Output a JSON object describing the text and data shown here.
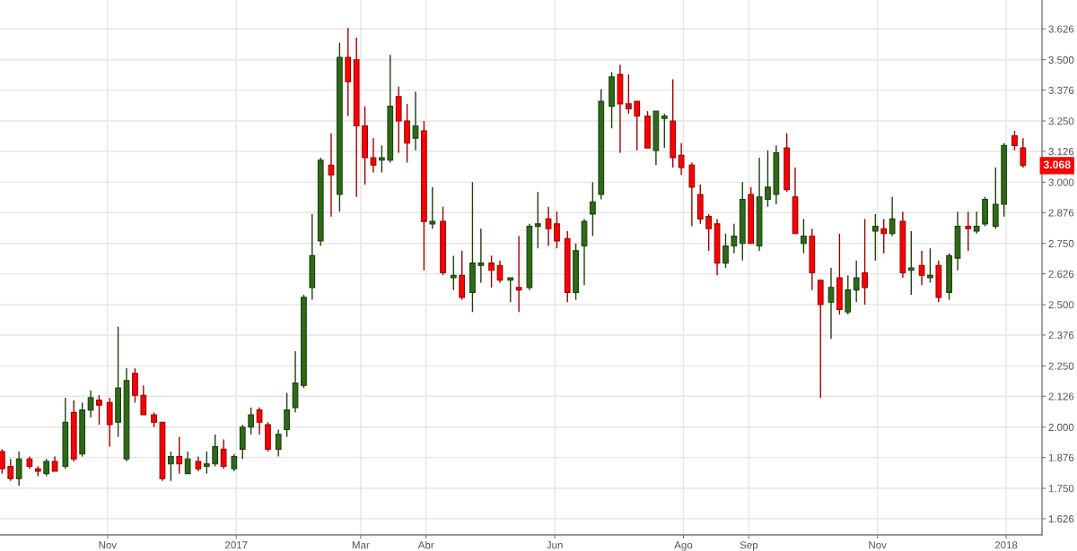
{
  "chart_data": {
    "type": "candlestick",
    "x": [
      "2016-09-12",
      "2016-09-16",
      "2016-09-20",
      "2016-09-25",
      "2016-09-29",
      "2016-10-03",
      "2016-10-07",
      "2016-10-12",
      "2016-10-16",
      "2016-10-20",
      "2016-10-24",
      "2016-10-28",
      "2016-11-02",
      "2016-11-06",
      "2016-11-10",
      "2016-11-14",
      "2016-11-18",
      "2016-11-23",
      "2016-11-27",
      "2016-12-01",
      "2016-12-05",
      "2016-12-09",
      "2016-12-14",
      "2016-12-18",
      "2016-12-22",
      "2016-12-26",
      "2016-12-31",
      "2017-01-04",
      "2017-01-08",
      "2017-01-12",
      "2017-01-16",
      "2017-01-21",
      "2017-01-25",
      "2017-01-29",
      "2017-02-02",
      "2017-02-06",
      "2017-02-10",
      "2017-02-15",
      "2017-02-19",
      "2017-02-23",
      "2017-02-27",
      "2017-03-03",
      "2017-03-07",
      "2017-03-11",
      "2017-03-15",
      "2017-03-19",
      "2017-03-23",
      "2017-03-27",
      "2017-03-31",
      "2017-04-04",
      "2017-04-09",
      "2017-04-14",
      "2017-04-18",
      "2017-04-23",
      "2017-04-27",
      "2017-05-02",
      "2017-05-06",
      "2017-05-11",
      "2017-05-15",
      "2017-05-20",
      "2017-05-24",
      "2017-05-29",
      "2017-06-02",
      "2017-06-07",
      "2017-06-11",
      "2017-06-15",
      "2017-06-19",
      "2017-06-23",
      "2017-06-28",
      "2017-07-02",
      "2017-07-06",
      "2017-07-10",
      "2017-07-15",
      "2017-07-19",
      "2017-07-23",
      "2017-07-27",
      "2017-07-31",
      "2017-08-05",
      "2017-08-09",
      "2017-08-13",
      "2017-08-17",
      "2017-08-21",
      "2017-08-25",
      "2017-08-29",
      "2017-09-02",
      "2017-09-06",
      "2017-09-10",
      "2017-09-14",
      "2017-09-19",
      "2017-09-23",
      "2017-09-27",
      "2017-10-01",
      "2017-10-05",
      "2017-10-10",
      "2017-10-14",
      "2017-10-18",
      "2017-10-22",
      "2017-10-26",
      "2017-10-31",
      "2017-11-04",
      "2017-11-08",
      "2017-11-13",
      "2017-11-17",
      "2017-11-22",
      "2017-11-26",
      "2017-11-30",
      "2017-12-05",
      "2017-12-09",
      "2017-12-14",
      "2017-12-18",
      "2017-12-22",
      "2017-12-27",
      "2017-12-31",
      "2018-01-05",
      "2018-01-09"
    ],
    "ohlc": [
      [
        1.9,
        1.91,
        1.81,
        1.83
      ],
      [
        1.84,
        1.87,
        1.78,
        1.79
      ],
      [
        1.79,
        1.9,
        1.76,
        1.87
      ],
      [
        1.87,
        1.88,
        1.83,
        1.84
      ],
      [
        1.83,
        1.84,
        1.8,
        1.82
      ],
      [
        1.81,
        1.87,
        1.8,
        1.86
      ],
      [
        1.86,
        1.88,
        1.82,
        1.82
      ],
      [
        1.84,
        2.12,
        1.83,
        2.02
      ],
      [
        2.06,
        2.11,
        1.86,
        1.87
      ],
      [
        1.89,
        2.1,
        1.88,
        2.07
      ],
      [
        2.07,
        2.15,
        2.04,
        2.12
      ],
      [
        2.11,
        2.13,
        2.01,
        2.09
      ],
      [
        2.1,
        2.12,
        1.92,
        2.01
      ],
      [
        2.02,
        2.41,
        1.96,
        2.16
      ],
      [
        1.87,
        2.24,
        1.86,
        2.19
      ],
      [
        2.22,
        2.24,
        2.1,
        2.13
      ],
      [
        2.13,
        2.17,
        2.05,
        2.05
      ],
      [
        2.05,
        2.06,
        2.0,
        2.02
      ],
      [
        2.02,
        2.02,
        1.78,
        1.79
      ],
      [
        1.85,
        1.9,
        1.78,
        1.88
      ],
      [
        1.88,
        1.96,
        1.81,
        1.85
      ],
      [
        1.81,
        1.9,
        1.81,
        1.87
      ],
      [
        1.86,
        1.88,
        1.82,
        1.83
      ],
      [
        1.84,
        1.9,
        1.81,
        1.85
      ],
      [
        1.85,
        1.97,
        1.84,
        1.92
      ],
      [
        1.91,
        1.95,
        1.83,
        1.84
      ],
      [
        1.83,
        1.89,
        1.82,
        1.88
      ],
      [
        1.91,
        2.01,
        1.87,
        2.0
      ],
      [
        2.0,
        2.08,
        1.97,
        2.05
      ],
      [
        2.07,
        2.08,
        1.97,
        2.02
      ],
      [
        2.01,
        2.02,
        1.9,
        1.91
      ],
      [
        1.91,
        1.99,
        1.88,
        1.97
      ],
      [
        1.99,
        2.14,
        1.96,
        2.07
      ],
      [
        2.08,
        2.31,
        2.06,
        2.18
      ],
      [
        2.17,
        2.54,
        2.16,
        2.53
      ],
      [
        2.57,
        2.87,
        2.52,
        2.7
      ],
      [
        2.76,
        3.1,
        2.74,
        3.09
      ],
      [
        3.07,
        3.2,
        2.86,
        3.03
      ],
      [
        2.95,
        3.57,
        2.88,
        3.51
      ],
      [
        3.51,
        3.63,
        3.27,
        3.41
      ],
      [
        3.5,
        3.59,
        2.94,
        3.23
      ],
      [
        3.23,
        3.31,
        2.99,
        3.1
      ],
      [
        3.1,
        3.18,
        3.04,
        3.07
      ],
      [
        3.09,
        3.15,
        3.04,
        3.1
      ],
      [
        3.09,
        3.52,
        3.08,
        3.31
      ],
      [
        3.35,
        3.39,
        3.12,
        3.25
      ],
      [
        3.25,
        3.32,
        3.08,
        3.16
      ],
      [
        3.18,
        3.37,
        3.13,
        3.23
      ],
      [
        3.21,
        3.25,
        2.64,
        2.84
      ],
      [
        2.83,
        2.98,
        2.81,
        2.84
      ],
      [
        2.84,
        2.9,
        2.62,
        2.63
      ],
      [
        2.61,
        2.7,
        2.56,
        2.62
      ],
      [
        2.62,
        2.72,
        2.52,
        2.53
      ],
      [
        2.55,
        3.0,
        2.47,
        2.67
      ],
      [
        2.66,
        2.81,
        2.59,
        2.67
      ],
      [
        2.67,
        2.7,
        2.57,
        2.64
      ],
      [
        2.66,
        2.68,
        2.59,
        2.6
      ],
      [
        2.6,
        2.61,
        2.51,
        2.61
      ],
      [
        2.57,
        2.78,
        2.47,
        2.56
      ],
      [
        2.57,
        2.83,
        2.56,
        2.82
      ],
      [
        2.82,
        2.96,
        2.73,
        2.83
      ],
      [
        2.85,
        2.9,
        2.74,
        2.81
      ],
      [
        2.83,
        2.88,
        2.73,
        2.76
      ],
      [
        2.77,
        2.8,
        2.51,
        2.55
      ],
      [
        2.55,
        2.75,
        2.52,
        2.72
      ],
      [
        2.74,
        2.85,
        2.58,
        2.84
      ],
      [
        2.87,
        3.0,
        2.78,
        2.92
      ],
      [
        2.95,
        3.38,
        2.93,
        3.33
      ],
      [
        3.31,
        3.45,
        3.22,
        3.43
      ],
      [
        3.44,
        3.48,
        3.12,
        3.32
      ],
      [
        3.32,
        3.44,
        3.28,
        3.3
      ],
      [
        3.33,
        3.33,
        3.13,
        3.27
      ],
      [
        3.27,
        3.29,
        3.14,
        3.14
      ],
      [
        3.13,
        3.29,
        3.07,
        3.29
      ],
      [
        3.26,
        3.28,
        3.14,
        3.27
      ],
      [
        3.25,
        3.42,
        3.06,
        3.1
      ],
      [
        3.11,
        3.16,
        3.03,
        3.06
      ],
      [
        3.07,
        3.08,
        2.82,
        2.98
      ],
      [
        2.95,
        2.99,
        2.83,
        2.85
      ],
      [
        2.86,
        2.87,
        2.72,
        2.81
      ],
      [
        2.83,
        2.85,
        2.62,
        2.67
      ],
      [
        2.67,
        2.79,
        2.65,
        2.74
      ],
      [
        2.74,
        2.83,
        2.71,
        2.78
      ],
      [
        2.75,
        3.0,
        2.68,
        2.93
      ],
      [
        2.95,
        2.98,
        2.75,
        2.75
      ],
      [
        2.74,
        3.1,
        2.72,
        2.94
      ],
      [
        2.93,
        3.13,
        2.9,
        2.98
      ],
      [
        2.95,
        3.15,
        2.91,
        3.12
      ],
      [
        3.14,
        3.2,
        2.96,
        2.97
      ],
      [
        2.94,
        3.06,
        2.79,
        2.79
      ],
      [
        2.75,
        2.85,
        2.71,
        2.78
      ],
      [
        2.78,
        2.81,
        2.56,
        2.63
      ],
      [
        2.6,
        2.6,
        2.12,
        2.5
      ],
      [
        2.51,
        2.65,
        2.36,
        2.57
      ],
      [
        2.61,
        2.79,
        2.46,
        2.48
      ],
      [
        2.47,
        2.62,
        2.46,
        2.56
      ],
      [
        2.56,
        2.68,
        2.51,
        2.61
      ],
      [
        2.63,
        2.85,
        2.5,
        2.57
      ],
      [
        2.8,
        2.87,
        2.68,
        2.82
      ],
      [
        2.81,
        2.85,
        2.71,
        2.79
      ],
      [
        2.79,
        2.94,
        2.78,
        2.85
      ],
      [
        2.84,
        2.88,
        2.61,
        2.63
      ],
      [
        2.64,
        2.8,
        2.54,
        2.65
      ],
      [
        2.66,
        2.72,
        2.58,
        2.62
      ],
      [
        2.61,
        2.73,
        2.59,
        2.62
      ],
      [
        2.66,
        2.68,
        2.51,
        2.53
      ],
      [
        2.55,
        2.71,
        2.52,
        2.7
      ],
      [
        2.69,
        2.88,
        2.64,
        2.82
      ],
      [
        2.82,
        2.88,
        2.72,
        2.81
      ],
      [
        2.8,
        2.88,
        2.79,
        2.82
      ],
      [
        2.83,
        2.94,
        2.82,
        2.93
      ],
      [
        2.82,
        3.06,
        2.81,
        2.91
      ],
      [
        2.91,
        3.16,
        2.86,
        3.15
      ],
      [
        3.19,
        3.21,
        3.13,
        3.15
      ],
      [
        3.14,
        3.18,
        3.06,
        3.068
      ]
    ],
    "colors": [
      "#ff0000",
      "#ff0000",
      "#2e6a17",
      "#ff0000",
      "#ff0000",
      "#2e6a17",
      "#ff0000",
      "#2e6a17",
      "#ff0000",
      "#2e6a17",
      "#2e6a17",
      "#ff0000",
      "#ff0000",
      "#2e6a17",
      "#2e6a17",
      "#ff0000",
      "#ff0000",
      "#ff0000",
      "#ff0000",
      "#2e6a17",
      "#ff0000",
      "#2e6a17",
      "#ff0000",
      "#2e6a17",
      "#2e6a17",
      "#ff0000",
      "#2e6a17",
      "#2e6a17",
      "#2e6a17",
      "#ff0000",
      "#ff0000",
      "#2e6a17",
      "#2e6a17",
      "#2e6a17",
      "#2e6a17",
      "#2e6a17",
      "#2e6a17",
      "#ff0000",
      "#2e6a17",
      "#ff0000",
      "#ff0000",
      "#ff0000",
      "#ff0000",
      "#2e6a17",
      "#2e6a17",
      "#ff0000",
      "#ff0000",
      "#2e6a17",
      "#ff0000",
      "#2e6a17",
      "#ff0000",
      "#2e6a17",
      "#ff0000",
      "#2e6a17",
      "#2e6a17",
      "#ff0000",
      "#ff0000",
      "#2e6a17",
      "#ff0000",
      "#2e6a17",
      "#2e6a17",
      "#ff0000",
      "#ff0000",
      "#ff0000",
      "#2e6a17",
      "#2e6a17",
      "#2e6a17",
      "#2e6a17",
      "#2e6a17",
      "#ff0000",
      "#ff0000",
      "#ff0000",
      "#ff0000",
      "#2e6a17",
      "#2e6a17",
      "#ff0000",
      "#ff0000",
      "#ff0000",
      "#ff0000",
      "#ff0000",
      "#ff0000",
      "#2e6a17",
      "#2e6a17",
      "#2e6a17",
      "#ff0000",
      "#2e6a17",
      "#2e6a17",
      "#2e6a17",
      "#ff0000",
      "#ff0000",
      "#2e6a17",
      "#ff0000",
      "#ff0000",
      "#2e6a17",
      "#ff0000",
      "#2e6a17",
      "#2e6a17",
      "#ff0000",
      "#2e6a17",
      "#ff0000",
      "#2e6a17",
      "#ff0000",
      "#2e6a17",
      "#ff0000",
      "#2e6a17",
      "#ff0000",
      "#2e6a17",
      "#2e6a17",
      "#ff0000",
      "#2e6a17",
      "#2e6a17",
      "#2e6a17",
      "#2e6a17",
      "#ff0000",
      "#ff0000"
    ],
    "xlim": [
      "2016-09-11",
      "2018-01-18"
    ],
    "xticks": [
      {
        "value": "2016-11-01",
        "label": "Nov"
      },
      {
        "value": "2017-01-01",
        "label": "2017"
      },
      {
        "value": "2017-03-01",
        "label": "Mar"
      },
      {
        "value": "2017-04-01",
        "label": "Abr"
      },
      {
        "value": "2017-06-01",
        "label": "Jun"
      },
      {
        "value": "2017-08-01",
        "label": "Ago"
      },
      {
        "value": "2017-09-01",
        "label": "Sep"
      },
      {
        "value": "2017-11-01",
        "label": "Nov"
      },
      {
        "value": "2018-01-01",
        "label": "2018"
      }
    ],
    "ylim": [
      1.56,
      3.744
    ],
    "yticks": [
      1.626,
      {
        "value": 1.75,
        "label": "1.750"
      },
      1.876,
      {
        "value": 2,
        "label": "2.000"
      },
      2.126,
      {
        "value": 2.25,
        "label": "2.250"
      },
      2.376,
      {
        "value": 2.5,
        "label": "2.500"
      },
      2.626,
      {
        "value": 2.75,
        "label": "2.750"
      },
      2.876,
      {
        "value": 3,
        "label": "3.000"
      },
      3.126,
      {
        "value": 3.25,
        "label": "3.250"
      },
      3.376,
      {
        "value": 3.5,
        "label": "3.500"
      },
      3.626
    ],
    "grid": true,
    "annotations": [
      {
        "text": "3.068",
        "y": 3.068
      }
    ]
  }
}
